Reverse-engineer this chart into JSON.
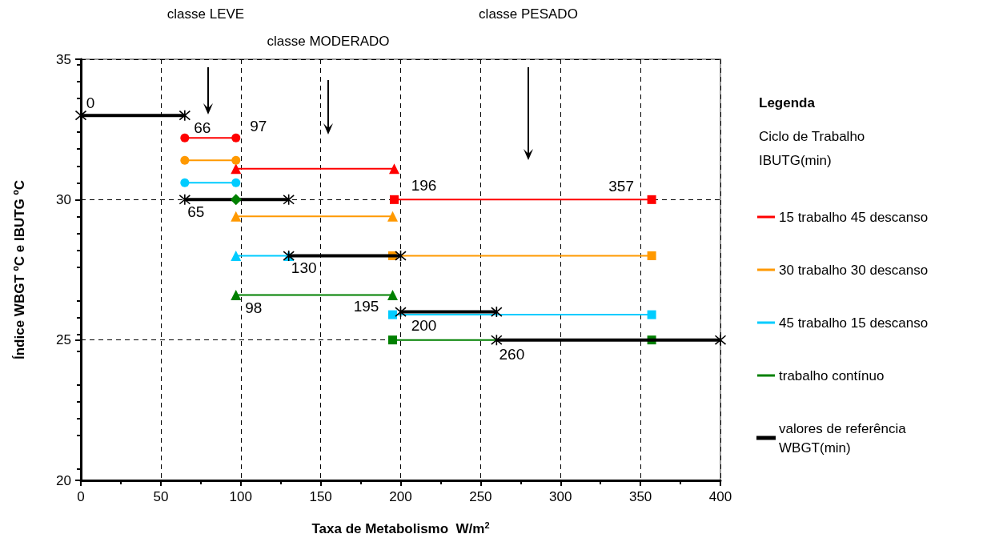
{
  "chart_data": {
    "type": "line",
    "xlabel": "Taxa de Metabolismo  W/m$^{2}$",
    "ylabel": "Índice WBGT ºC e IBUTG ºC",
    "legend_title": "Legenda",
    "xlim": [
      0,
      400
    ],
    "xticks": [
      0,
      50,
      100,
      150,
      200,
      250,
      300,
      350,
      400
    ],
    "ylim": [
      20,
      35
    ],
    "yticks": [
      20,
      25,
      30,
      35
    ],
    "grid": true,
    "legend": "right",
    "line_style": "solid",
    "series": [
      {
        "name": "15 trabalho 45 descanso",
        "color": "#ff0000",
        "x": [
          65,
          97
        ],
        "values": [
          32.2,
          32.2
        ],
        "marker": "circle"
      },
      {
        "color": "#ff0000",
        "x": [
          97,
          196
        ],
        "values": [
          31.1,
          31.1
        ],
        "marker": "triangle"
      },
      {
        "color": "#ff0000",
        "x": [
          196,
          357
        ],
        "values": [
          30,
          30
        ],
        "marker": "square"
      },
      {
        "name": "30 trabalho 30 descanso",
        "color": "#ff9900",
        "x": [
          65,
          97
        ],
        "values": [
          31.4,
          31.4
        ],
        "marker": "circle"
      },
      {
        "color": "#ff9900",
        "x": [
          97,
          195
        ],
        "values": [
          29.4,
          29.4
        ],
        "marker": "triangle"
      },
      {
        "color": "#ff9900",
        "x": [
          195,
          357
        ],
        "values": [
          28,
          28
        ],
        "marker": "square"
      },
      {
        "name": "45 trabalho 15 descanso",
        "color": "#00ccff",
        "x": [
          65,
          97
        ],
        "values": [
          30.6,
          30.6
        ],
        "marker": "circle"
      },
      {
        "color": "#00ccff",
        "x": [
          97,
          130
        ],
        "values": [
          28,
          28
        ],
        "marker": "triangle"
      },
      {
        "color": "#00ccff",
        "x": [
          195,
          357
        ],
        "values": [
          25.9,
          25.9
        ],
        "marker": "square"
      },
      {
        "name": "trabalho contínuo",
        "color": "#008000",
        "x": [
          97,
          195
        ],
        "values": [
          26.6,
          26.6
        ],
        "marker": "triangle"
      },
      {
        "color": "#008000",
        "x": [
          195,
          357
        ],
        "values": [
          25,
          25
        ],
        "marker": "square"
      },
      {
        "name": "valores de referência WBGT(min)",
        "color": "#000000",
        "x": [
          0,
          65
        ],
        "values": [
          33,
          33
        ],
        "marker": "cross"
      },
      {
        "color": "#000000",
        "x": [
          65,
          130
        ],
        "values": [
          30,
          30
        ],
        "marker": "cross"
      },
      {
        "color": "#000000",
        "x": [
          130,
          200
        ],
        "values": [
          28,
          28
        ],
        "marker": "cross"
      },
      {
        "color": "#000000",
        "x": [
          200,
          260
        ],
        "values": [
          26,
          26
        ],
        "marker": "cross"
      },
      {
        "color": "#000000",
        "x": [
          260,
          400
        ],
        "values": [
          25,
          25
        ],
        "marker": "cross"
      },
      {
        "color": "#008000",
        "x": [
          97
        ],
        "values": [
          30
        ],
        "marker": "diamond"
      }
    ],
    "annotations": [
      "Ciclo de Trabalho IBUTG(min)",
      "classe LEVE",
      "classe MODERADO",
      "classe PESADO",
      {
        "text": "0",
        "x": 0,
        "y": 33
      },
      {
        "text": "66",
        "x": 65,
        "y": 32.2
      },
      {
        "text": "97",
        "x": 97,
        "y": 32.2
      },
      {
        "text": "65",
        "x": 65,
        "y": 30
      },
      {
        "text": "196",
        "x": 196,
        "y": 30
      },
      {
        "text": "357",
        "x": 357,
        "y": 30
      },
      {
        "text": "130",
        "x": 130,
        "y": 28
      },
      {
        "text": "98",
        "x": 97,
        "y": 26.6
      },
      {
        "text": "195",
        "x": 195,
        "y": 26.6
      },
      {
        "text": "200",
        "x": 200,
        "y": 26
      },
      {
        "text": "260",
        "x": 260,
        "y": 25
      }
    ]
  }
}
